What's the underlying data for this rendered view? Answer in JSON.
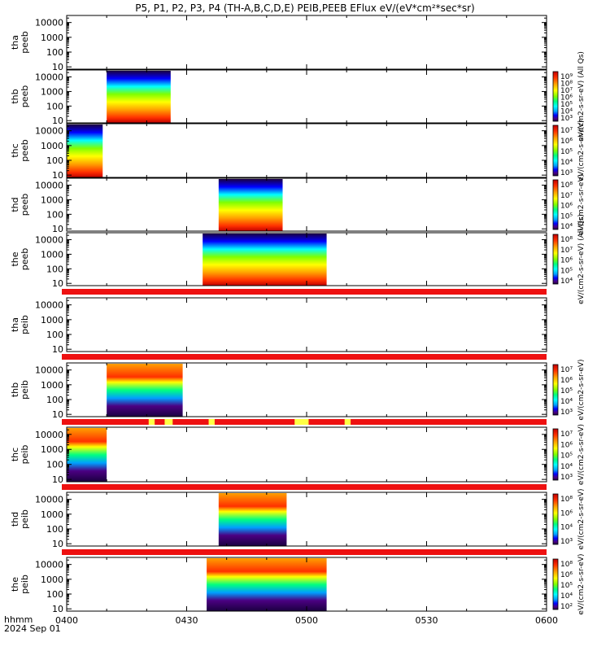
{
  "chart_data": {
    "type": "heatmap",
    "title": "P5, P1, P2, P3, P4 (TH-A,B,C,D,E) PEIB,PEEB EFlux eV/(eV*cm²*sec*sr)",
    "x_tick_labels": [
      "0400",
      "0430",
      "0500",
      "0530",
      "0600"
    ],
    "x_tick_minutes": [
      0,
      30,
      60,
      90,
      120
    ],
    "xlim_minutes": [
      0,
      120
    ],
    "time_label": "hhmm",
    "date_label": "2024 Sep 01",
    "y_scale": "log",
    "y_tick_labels": [
      "10",
      "100",
      "1000",
      "10000"
    ],
    "y_tick_values": [
      10,
      100,
      1000,
      10000
    ],
    "ylim": [
      7,
      30000
    ],
    "panels": [
      {
        "id": "tha_peeb",
        "label_top": "tha",
        "label_bottom": "peeb",
        "data_start_min": null,
        "data_end_min": null,
        "colorbar": false
      },
      {
        "id": "thb_peeb",
        "label_top": "thb",
        "label_bottom": "peeb",
        "data_start_min": 10,
        "data_end_min": 26,
        "colorbar": true
      },
      {
        "id": "thc_peeb",
        "label_top": "thc",
        "label_bottom": "peeb",
        "data_start_min": 0,
        "data_end_min": 9,
        "colorbar": true
      },
      {
        "id": "thd_peeb",
        "label_top": "thd",
        "label_bottom": "peeb",
        "data_start_min": 38,
        "data_end_min": 54,
        "colorbar": true
      },
      {
        "id": "the_peeb",
        "label_top": "the",
        "label_bottom": "peeb",
        "data_start_min": 34,
        "data_end_min": 65,
        "colorbar": true
      },
      {
        "id": "tha_peib",
        "label_top": "tha",
        "label_bottom": "peib",
        "data_start_min": null,
        "data_end_min": null,
        "colorbar": false
      },
      {
        "id": "thb_peib",
        "label_top": "thb",
        "label_bottom": "peib",
        "data_start_min": 10,
        "data_end_min": 29,
        "colorbar": true
      },
      {
        "id": "thc_peib",
        "label_top": "thc",
        "label_bottom": "peib",
        "data_start_min": 0,
        "data_end_min": 10,
        "colorbar": true
      },
      {
        "id": "thd_peib",
        "label_top": "thd",
        "label_bottom": "peib",
        "data_start_min": 38,
        "data_end_min": 55,
        "colorbar": true
      },
      {
        "id": "the_peib",
        "label_top": "the",
        "label_bottom": "peib",
        "data_start_min": 35,
        "data_end_min": 65,
        "colorbar": true
      }
    ],
    "mode_bars": [
      {
        "after_panel": "the_peeb",
        "color": "#ee1111"
      },
      {
        "after_panel": "tha_peib",
        "color": "#ee1111"
      },
      {
        "after_panel": "thb_peib",
        "color": "#ee1111",
        "highlight_color": "#ffff44",
        "highlights_min": [
          [
            20.5,
            22
          ],
          [
            24.5,
            26.5
          ],
          [
            35.5,
            37
          ],
          [
            57,
            60.5
          ],
          [
            69.5,
            71
          ]
        ]
      },
      {
        "after_panel": "thc_peib",
        "color": "#ee1111"
      },
      {
        "after_panel": "thd_peib",
        "color": "#ee1111"
      }
    ],
    "colorbars": [
      {
        "panel": "thb_peeb",
        "tick_labels": [
          "10⁹",
          "10⁸",
          "10⁷",
          "10⁶",
          "10⁵",
          "10⁴",
          "10³"
        ],
        "unit_label": "eV/(cm2-s-sr-eV) (All Qs)"
      },
      {
        "panel": "thc_peeb",
        "tick_labels": [
          "10⁷",
          "10⁶",
          "10⁵",
          "10⁴",
          "10³"
        ],
        "unit_label": "eV/(cm2-s-sr-eV)"
      },
      {
        "panel": "thd_peeb",
        "tick_labels": [
          "10⁸",
          "10⁷",
          "10⁶",
          "10⁵",
          "10⁴"
        ],
        "unit_label": "eV/(cm2-s-sr-eV)"
      },
      {
        "panel": "the_peeb",
        "tick_labels": [
          "10⁸",
          "10⁷",
          "10⁶",
          "10⁵",
          "10⁴"
        ],
        "unit_label": "eV/(cm2-s-sr-eV) (All Qs)"
      },
      {
        "panel": "thb_peib",
        "tick_labels": [
          "10⁷",
          "10⁶",
          "10⁵",
          "10⁴",
          "10³"
        ],
        "unit_label": "eV/(cm2-s-sr-eV)"
      },
      {
        "panel": "thc_peib",
        "tick_labels": [
          "10⁷",
          "10⁶",
          "10⁵",
          "10⁴",
          "10³"
        ],
        "unit_label": "eV/(cm2-s-sr-eV)"
      },
      {
        "panel": "thd_peib",
        "tick_labels": [
          "10⁸",
          "10⁶",
          "10⁴",
          "10³"
        ],
        "unit_label": "eV/(cm2-s-sr-eV)"
      },
      {
        "panel": "the_peib",
        "tick_labels": [
          "10⁸",
          "10⁶",
          "10⁵",
          "10⁴",
          "10²"
        ],
        "unit_label": "eV/(cm2-s-sr-eV)"
      }
    ],
    "colorscale": [
      "#1a0040",
      "#4b0082",
      "#0000ff",
      "#00a0ff",
      "#00ffff",
      "#00ff80",
      "#80ff00",
      "#ffff00",
      "#ffa000",
      "#ff3000",
      "#c00000"
    ],
    "grid": false,
    "legend": "none"
  }
}
